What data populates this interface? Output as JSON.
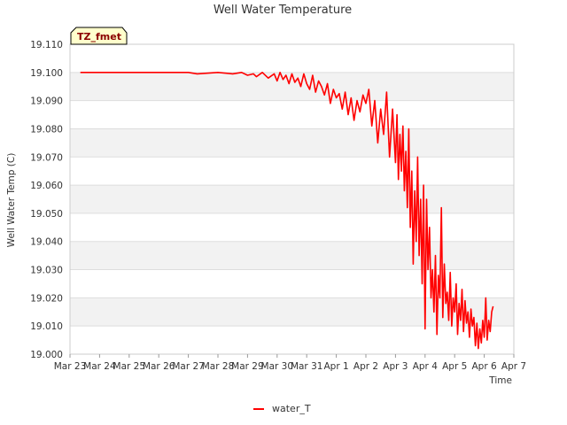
{
  "chart_data": {
    "type": "line",
    "title": "Well Water Temperature",
    "xlabel": "Time",
    "ylabel": "Well Water Temp (C)",
    "badge": "TZ_fmet",
    "ylim": [
      19.0,
      19.11
    ],
    "y_ticks": [
      "19.000",
      "19.010",
      "19.020",
      "19.030",
      "19.040",
      "19.050",
      "19.060",
      "19.070",
      "19.080",
      "19.090",
      "19.100",
      "19.110"
    ],
    "xlim": [
      0,
      15
    ],
    "x_ticks": [
      "Mar 23",
      "Mar 24",
      "Mar 25",
      "Mar 26",
      "Mar 27",
      "Mar 28",
      "Mar 29",
      "Mar 30",
      "Mar 31",
      "Apr 1",
      "Apr 2",
      "Apr 3",
      "Apr 4",
      "Apr 5",
      "Apr 6",
      "Apr 7"
    ],
    "x_unit": "days since Mar 23",
    "grid": "horizontal bands",
    "legend_position": "bottom-center",
    "colors": {
      "series": "#ff0000",
      "band": "#f2f2f2",
      "grid": "#dddddd",
      "badge_fill": "#ffffcc"
    },
    "series": [
      {
        "name": "water_T",
        "x": [
          0.35,
          1.0,
          2.0,
          3.0,
          4.0,
          4.3,
          5.0,
          5.5,
          5.8,
          6.0,
          6.2,
          6.3,
          6.5,
          6.7,
          6.9,
          7.0,
          7.1,
          7.2,
          7.3,
          7.4,
          7.5,
          7.6,
          7.7,
          7.8,
          7.9,
          8.0,
          8.1,
          8.2,
          8.3,
          8.4,
          8.5,
          8.6,
          8.7,
          8.8,
          8.9,
          9.0,
          9.1,
          9.2,
          9.3,
          9.4,
          9.5,
          9.6,
          9.7,
          9.8,
          9.9,
          10.0,
          10.1,
          10.2,
          10.3,
          10.4,
          10.5,
          10.6,
          10.7,
          10.8,
          10.9,
          11.0,
          11.05,
          11.1,
          11.15,
          11.2,
          11.25,
          11.3,
          11.35,
          11.4,
          11.45,
          11.5,
          11.55,
          11.6,
          11.65,
          11.7,
          11.75,
          11.8,
          11.85,
          11.9,
          11.95,
          12.0,
          12.05,
          12.1,
          12.15,
          12.2,
          12.25,
          12.3,
          12.35,
          12.4,
          12.45,
          12.5,
          12.55,
          12.6,
          12.65,
          12.7,
          12.75,
          12.8,
          12.85,
          12.9,
          12.95,
          13.0,
          13.05,
          13.1,
          13.15,
          13.2,
          13.25,
          13.3,
          13.35,
          13.4,
          13.45,
          13.5,
          13.55,
          13.6,
          13.65,
          13.7,
          13.75,
          13.8,
          13.85,
          13.9,
          13.95,
          14.0,
          14.05,
          14.1,
          14.15,
          14.2,
          14.25,
          14.3
        ],
        "values": [
          19.1,
          19.1,
          19.1,
          19.1,
          19.1,
          19.0995,
          19.1,
          19.0995,
          19.1,
          19.099,
          19.0995,
          19.0985,
          19.1,
          19.098,
          19.0995,
          19.097,
          19.1,
          19.0975,
          19.099,
          19.096,
          19.0995,
          19.0965,
          19.098,
          19.095,
          19.0995,
          19.096,
          19.094,
          19.099,
          19.093,
          19.097,
          19.095,
          19.092,
          19.096,
          19.089,
          19.094,
          19.091,
          19.0925,
          19.087,
          19.093,
          19.085,
          19.091,
          19.083,
          19.09,
          19.086,
          19.092,
          19.089,
          19.094,
          19.081,
          19.09,
          19.075,
          19.087,
          19.078,
          19.093,
          19.07,
          19.087,
          19.068,
          19.085,
          19.062,
          19.078,
          19.065,
          19.081,
          19.058,
          19.072,
          19.052,
          19.08,
          19.045,
          19.065,
          19.032,
          19.058,
          19.04,
          19.07,
          19.035,
          19.055,
          19.025,
          19.06,
          19.009,
          19.055,
          19.03,
          19.045,
          19.02,
          19.03,
          19.015,
          19.035,
          19.007,
          19.028,
          19.02,
          19.052,
          19.013,
          19.032,
          19.018,
          19.022,
          19.012,
          19.029,
          19.01,
          19.02,
          19.015,
          19.025,
          19.007,
          19.018,
          19.012,
          19.023,
          19.008,
          19.019,
          19.011,
          19.015,
          19.006,
          19.016,
          19.01,
          19.013,
          19.003,
          19.011,
          19.002,
          19.009,
          19.004,
          19.012,
          19.006,
          19.02,
          19.005,
          19.012,
          19.008,
          19.015,
          19.017
        ]
      }
    ]
  }
}
